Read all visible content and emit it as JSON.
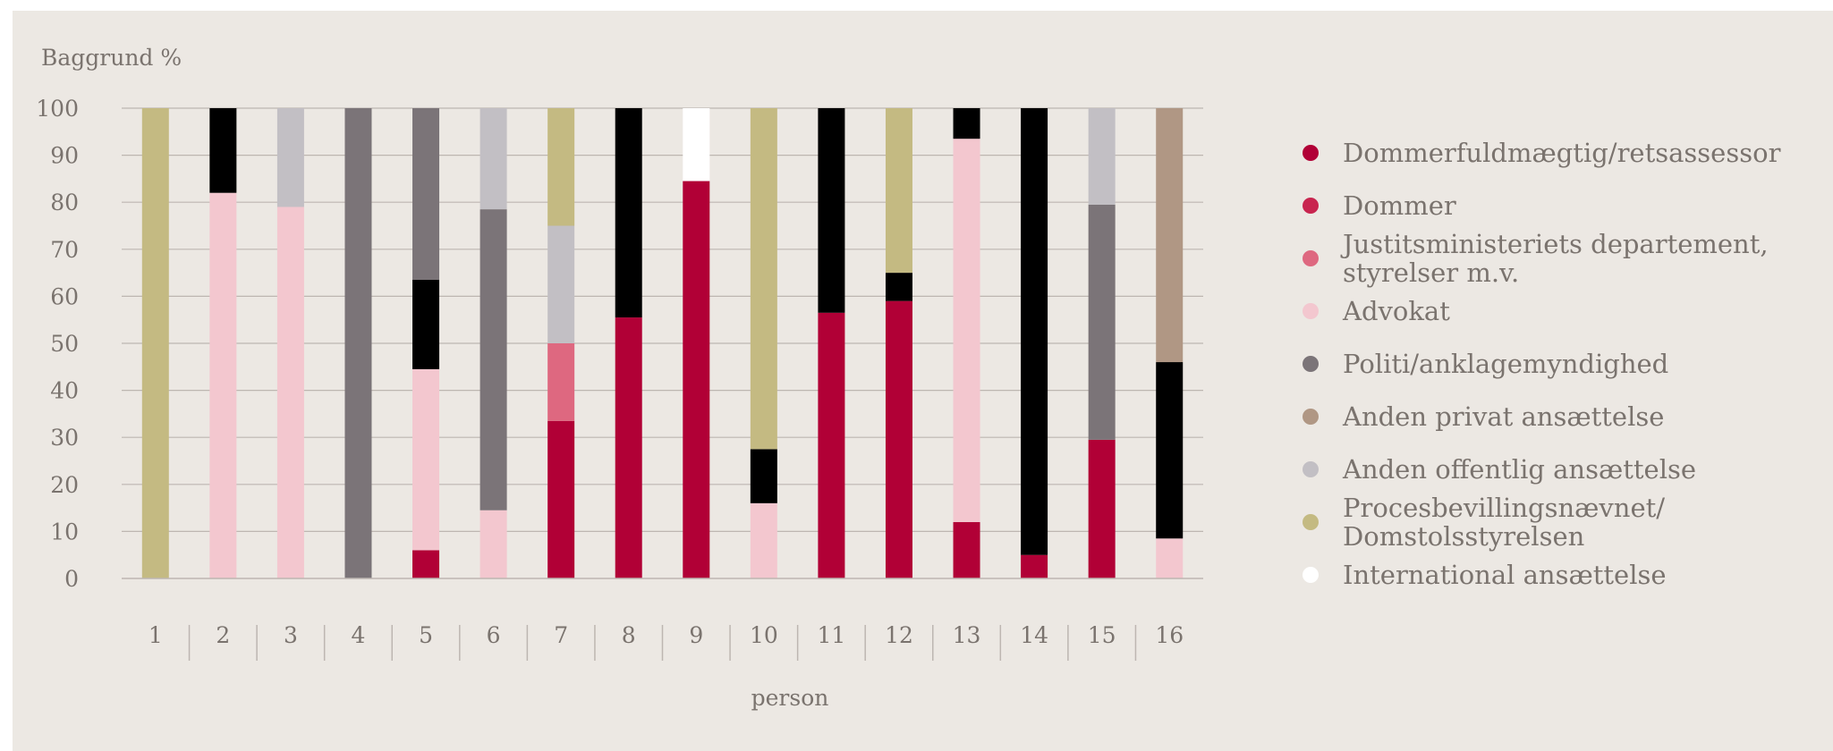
{
  "chart_data": {
    "type": "bar",
    "stacked": true,
    "title": "",
    "ylabel": "Baggrund %",
    "xlabel": "person",
    "ylim": [
      0,
      100
    ],
    "yticks": [
      0,
      10,
      20,
      30,
      40,
      50,
      60,
      70,
      80,
      90,
      100
    ],
    "grid": true,
    "legend_position": "right",
    "categories": [
      "1",
      "2",
      "3",
      "4",
      "5",
      "6",
      "7",
      "8",
      "9",
      "10",
      "11",
      "12",
      "13",
      "14",
      "15",
      "16"
    ],
    "series": [
      {
        "name": "Dommerfuldmægtig/retsassessor",
        "color": "#b10036",
        "values": [
          0,
          0,
          0,
          0,
          6,
          0,
          33.5,
          55.5,
          84.5,
          0,
          56.5,
          59,
          12,
          5,
          29.5,
          0
        ]
      },
      {
        "name": "Dommer",
        "color": "#c8254f",
        "values": [
          0,
          0,
          0,
          0,
          0,
          0,
          0,
          0,
          0,
          0,
          0,
          0,
          0,
          0,
          0,
          0
        ]
      },
      {
        "name": "Justitsministeriets departement, styrelser m.v.",
        "color": "#de6880",
        "values": [
          0,
          0,
          0,
          0,
          0,
          0,
          16.5,
          0,
          0,
          0,
          0,
          0,
          0,
          0,
          0,
          0
        ]
      },
      {
        "name": "Advokat",
        "color": "#f3c7cf",
        "values": [
          0,
          82,
          79,
          0,
          38.5,
          14.5,
          0,
          0,
          0,
          16,
          0,
          0,
          81.5,
          0,
          0,
          8.5
        ]
      },
      {
        "name": "Politi/anklagemyndighed",
        "color": "#7b7478",
        "values": [
          0,
          0,
          0,
          100,
          36.5,
          64,
          0,
          0,
          0,
          0,
          0,
          0,
          0,
          0,
          50,
          0
        ]
      },
      {
        "name": "Anden privat ansættelse",
        "color": "#b09784",
        "values": [
          0,
          0,
          0,
          0,
          0,
          0,
          0,
          0,
          0,
          0,
          0,
          0,
          0,
          0,
          0,
          54
        ]
      },
      {
        "name": "Anden offentlig ansættelse",
        "color": "#c2bfc4",
        "values": [
          0,
          0,
          21,
          0,
          0,
          21.5,
          25,
          0,
          0,
          0,
          0,
          0,
          0,
          0,
          20.5,
          0
        ]
      },
      {
        "name": "Procesbevillingsnævnet/ Domstolsstyrelsen",
        "color": "#c4ba82",
        "values": [
          100,
          0,
          0,
          0,
          0,
          0,
          25,
          0,
          0,
          72.5,
          0,
          35,
          0,
          0,
          0,
          0
        ]
      },
      {
        "name": "International ansættelse",
        "color": "#ffffff",
        "values": [
          0,
          0,
          0,
          0,
          0,
          0,
          0,
          0,
          15.5,
          0,
          0,
          0,
          0,
          0,
          0,
          0
        ]
      },
      {
        "name": "Black",
        "color": "#000000",
        "in_legend": false,
        "values": [
          0,
          18,
          0,
          0,
          19,
          0,
          0,
          44.5,
          0,
          11.5,
          43.5,
          6,
          6.5,
          95,
          0,
          37.5
        ]
      }
    ],
    "stack_order": [
      0,
      1,
      2,
      3,
      9,
      4,
      5,
      6,
      7,
      8
    ],
    "legend_lines": [
      [
        "Dommerfuldmægtig/retsassessor"
      ],
      [
        "Dommer"
      ],
      [
        "Justitsministeriets departement,",
        "styrelser m.v."
      ],
      [
        "Advokat"
      ],
      [
        "Politi/anklagemyndighed"
      ],
      [
        "Anden privat ansættelse"
      ],
      [
        "Anden offentlig ansættelse"
      ],
      [
        "Procesbevillingsnævnet/",
        "Domstolsstyrelsen"
      ],
      [
        "International ansættelse"
      ]
    ]
  }
}
